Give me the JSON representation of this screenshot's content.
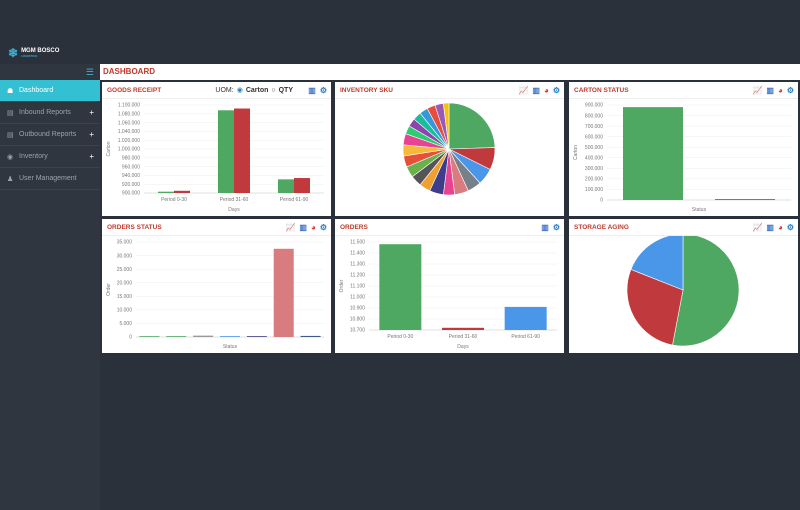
{
  "brand": {
    "name": "MGM BOSCO",
    "tagline": "LOGISTICS"
  },
  "page_title": "DASHBOARD",
  "sidebar": {
    "items": [
      {
        "label": "Dashboard",
        "icon": "dashboard-icon",
        "active": true
      },
      {
        "label": "Inbound Reports",
        "icon": "report-icon",
        "expand": "+"
      },
      {
        "label": "Outbound Reports",
        "icon": "report-icon",
        "expand": "+"
      },
      {
        "label": "Inventory",
        "icon": "inventory-icon",
        "expand": "+"
      },
      {
        "label": "User Management",
        "icon": "users-icon"
      }
    ]
  },
  "uom": {
    "label": "UOM:",
    "options": [
      "Carton",
      "QTY"
    ],
    "selected": "Carton"
  },
  "colors": {
    "green": "#4ea862",
    "red": "#c0393d",
    "blue": "#4a96e8",
    "pink": "#d97c80",
    "accent": "#33c0d3"
  },
  "chart_data": [
    {
      "id": "goods",
      "title": "GOODS RECEIPT",
      "type": "bar",
      "xlabel": "Days",
      "ylabel": "Carton",
      "ylim": [
        900000,
        1100000
      ],
      "ticks": [
        "900.000",
        "920.000",
        "940.000",
        "960.000",
        "980.000",
        "1.000.000",
        "1.020.000",
        "1.040.000",
        "1.060.000",
        "1.080.000",
        "1.100.000"
      ],
      "categories": [
        "Period 0-30",
        "Period 31-60",
        "Period 61-90"
      ],
      "series": [
        {
          "values": [
            903000,
            1088000,
            931000
          ],
          "color": "#4ea862"
        },
        {
          "values": [
            905000,
            1092000,
            934000
          ],
          "color": "#c0393d"
        }
      ]
    },
    {
      "id": "sku",
      "title": "INVENTORY SKU",
      "type": "pie",
      "values": [
        25,
        8,
        6,
        5,
        5,
        4,
        5,
        4,
        4,
        4,
        4,
        4,
        4,
        3,
        3,
        3,
        3,
        3,
        3,
        2
      ],
      "colors": [
        "#4ea862",
        "#c0393d",
        "#4a96e8",
        "#777f88",
        "#d97c80",
        "#e84393",
        "#3d3d8c",
        "#f0a030",
        "#555",
        "#6ab04c",
        "#e55039",
        "#f6b93b",
        "#e84393",
        "#2ecc71",
        "#8e44ad",
        "#1abc9c",
        "#3498db",
        "#e74c3c",
        "#9b59b6",
        "#f1c40f"
      ]
    },
    {
      "id": "carton",
      "title": "CARTON STATUS",
      "type": "bar",
      "xlabel": "Status",
      "ylabel": "Carton",
      "ylim": [
        0,
        900000
      ],
      "ticks": [
        "0",
        "100.000",
        "200.000",
        "300.000",
        "400.000",
        "500.000",
        "600.000",
        "700.000",
        "800.000",
        "900.000"
      ],
      "categories": [
        "",
        ""
      ],
      "series": [
        {
          "values": [
            880000,
            8000
          ],
          "colors": [
            "#4ea862",
            "#c0393d"
          ]
        }
      ]
    },
    {
      "id": "ostatus",
      "title": "ORDERS STATUS",
      "type": "bar",
      "xlabel": "Status",
      "ylabel": "Order",
      "ylim": [
        0,
        35000
      ],
      "ticks": [
        "0",
        "5.000",
        "10.000",
        "15.000",
        "20.000",
        "25.000",
        "30.000",
        "35.000"
      ],
      "categories": [
        "",
        "",
        "",
        "",
        "",
        "",
        ""
      ],
      "series": [
        {
          "values": [
            200,
            300,
            500,
            300,
            300,
            32500,
            400
          ],
          "colors": [
            "#4ea862",
            "#4ea862",
            "#999",
            "#4a96e8",
            "#3d3d8c",
            "#d97c80",
            "#3d5a8c"
          ]
        }
      ]
    },
    {
      "id": "orders",
      "title": "ORDERS",
      "type": "bar",
      "xlabel": "Days",
      "ylabel": "Order",
      "ylim": [
        10700,
        11500
      ],
      "ticks": [
        "10.700",
        "10.800",
        "10.900",
        "11.000",
        "11.100",
        "11.200",
        "11.300",
        "11.400",
        "11.500"
      ],
      "categories": [
        "Period 0-30",
        "Period 31-60",
        "Period 61-90"
      ],
      "series": [
        {
          "values": [
            11480,
            10720,
            10910
          ],
          "colors": [
            "#4ea862",
            "#c0393d",
            "#4a96e8"
          ]
        }
      ]
    },
    {
      "id": "aging",
      "title": "STORAGE AGING",
      "type": "pie",
      "values": [
        53,
        28,
        19
      ],
      "colors": [
        "#4ea862",
        "#c0393d",
        "#4a96e8"
      ]
    }
  ]
}
